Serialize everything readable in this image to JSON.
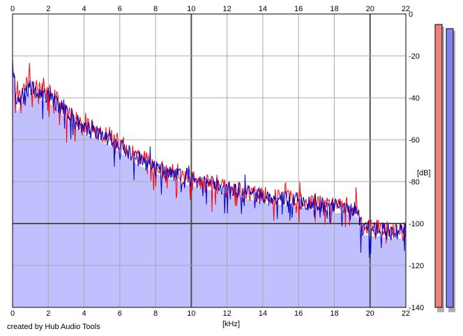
{
  "credit": "created by Hub Audio Tools",
  "chart_data": {
    "type": "area",
    "xlabel": "[kHz]",
    "ylabel": "[dB]",
    "xlim": [
      0,
      22
    ],
    "ylim": [
      -140,
      0
    ],
    "x_ticks": [
      "0",
      "2",
      "4",
      "6",
      "8",
      "10",
      "12",
      "14",
      "16",
      "18",
      "20",
      "22"
    ],
    "y_ticks": [
      "0",
      "-20",
      "-40",
      "-60",
      "-80",
      "-100",
      "-120",
      "-140"
    ],
    "grid": true,
    "x": [
      0,
      0.25,
      0.5,
      0.75,
      1,
      1.5,
      2,
      2.5,
      3,
      3.5,
      4,
      4.5,
      5,
      5.5,
      6,
      6.5,
      7,
      7.5,
      8,
      8.5,
      9,
      9.5,
      10,
      10.5,
      11,
      11.5,
      12,
      12.5,
      13,
      13.5,
      14,
      14.5,
      15,
      15.5,
      16,
      16.5,
      17,
      17.5,
      18,
      18.5,
      19,
      19.3,
      19.5,
      20,
      20.5,
      21,
      21.5,
      22
    ],
    "series": [
      {
        "color": "#ff0000",
        "values": [
          -25,
          -40,
          -37,
          -34,
          -33,
          -36,
          -37,
          -41,
          -46,
          -50,
          -53,
          -55,
          -57,
          -59,
          -61,
          -65,
          -68,
          -70,
          -72,
          -74,
          -75,
          -77,
          -78,
          -80,
          -80,
          -82,
          -83,
          -84,
          -85,
          -86,
          -86,
          -87,
          -88,
          -88,
          -89,
          -90,
          -90,
          -91,
          -91,
          -91,
          -92,
          -93,
          -101,
          -102,
          -102,
          -103,
          -104,
          -103
        ]
      },
      {
        "color": "#0000c8",
        "values": [
          -22,
          -44,
          -39,
          -36,
          -35,
          -38,
          -39,
          -43,
          -47,
          -51,
          -54,
          -56,
          -58,
          -60,
          -63,
          -66,
          -69,
          -71,
          -73,
          -75,
          -76,
          -78,
          -79,
          -80,
          -81,
          -82,
          -83,
          -84,
          -85,
          -86,
          -87,
          -88,
          -88,
          -89,
          -89,
          -90,
          -91,
          -91,
          -92,
          -92,
          -93,
          -94,
          -102,
          -103,
          -103,
          -104,
          -104,
          -104
        ]
      }
    ],
    "fill_color": "#c0c0ff",
    "level_meters": [
      {
        "color": "#f08080",
        "level_db": -5
      },
      {
        "color": "#8080f0",
        "level_db": -7
      }
    ]
  }
}
